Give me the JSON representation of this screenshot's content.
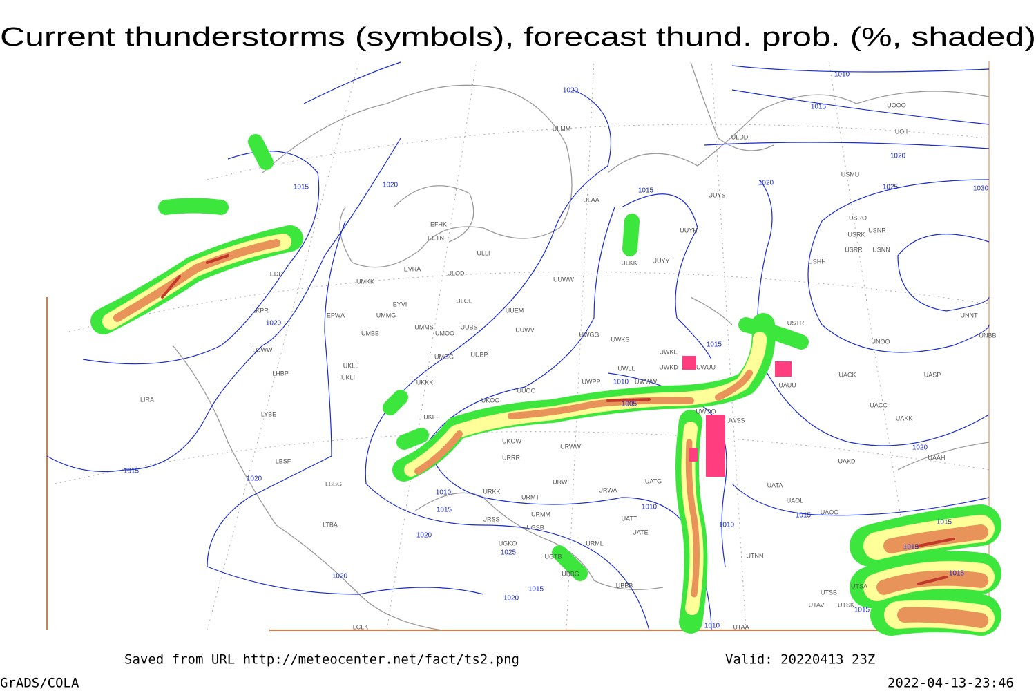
{
  "title": "Current thunderstorms (symbols), forecast thund. prob. (%, shaded)",
  "footer": {
    "source": "Saved from URL http://meteocenter.net/fact/ts2.png",
    "valid": "Valid: 20220413 23Z",
    "software": "GrADS/COLA",
    "timestamp": "2022-04-13-23:46"
  },
  "stations": [
    "EDDT",
    "LKPR",
    "EPWA",
    "UMMG",
    "UMBB",
    "EYVI",
    "UMKK",
    "EVRA",
    "ULOD",
    "ULOL",
    "UUEM",
    "UMMS",
    "UMOO",
    "UUBS",
    "UMGG",
    "UUBP",
    "UKLL",
    "UKLI",
    "LOWW",
    "LHBP",
    "LIRA",
    "LYBE",
    "UKKK",
    "LBSF",
    "LBBG",
    "LTBA",
    "UKFF",
    "UKOO",
    "UUOO",
    "UKOW",
    "URRR",
    "URWI",
    "URKK",
    "URMT",
    "URMM",
    "URSS",
    "UGSB",
    "UGKO",
    "UGTB",
    "UBBG",
    "UBBB",
    "UUWW",
    "UWGG",
    "UUWV",
    "UWKS",
    "UWPP",
    "UWWW",
    "UWLL",
    "URWA",
    "UATG",
    "UATT",
    "UATE",
    "URML",
    "UWKD",
    "UWKE",
    "UWUU",
    "UUYY",
    "ULKK",
    "UUYH",
    "UUYS",
    "ULAA",
    "ULMM",
    "EFHK",
    "EETN",
    "ULLI",
    "ULDD",
    "USMU",
    "USRR",
    "USRK",
    "USRO",
    "USNR",
    "USNN",
    "USHH",
    "UOII",
    "UOOO",
    "USTR",
    "UNOO",
    "UNNT",
    "UNBB",
    "UASP",
    "UACK",
    "UACC",
    "UAKK",
    "UAKD",
    "UAAH",
    "UATA",
    "UAOL",
    "UAOO",
    "UTNN",
    "UTSA",
    "UTSB",
    "UTAV",
    "UTSK",
    "UTAA",
    "LCLK",
    "UAUU",
    "UWOO",
    "UWSS",
    "URWW"
  ],
  "isobar_labels": [
    1010,
    1015,
    1020,
    1020,
    1025,
    1030,
    1020,
    1015,
    1015,
    1020,
    1020,
    1015,
    1010,
    1005,
    1015,
    1020,
    1010,
    1015,
    1020,
    1010,
    1010,
    1015,
    1020,
    1025,
    1020,
    1015,
    1020,
    1010,
    1015,
    1015,
    1015,
    1015
  ]
}
